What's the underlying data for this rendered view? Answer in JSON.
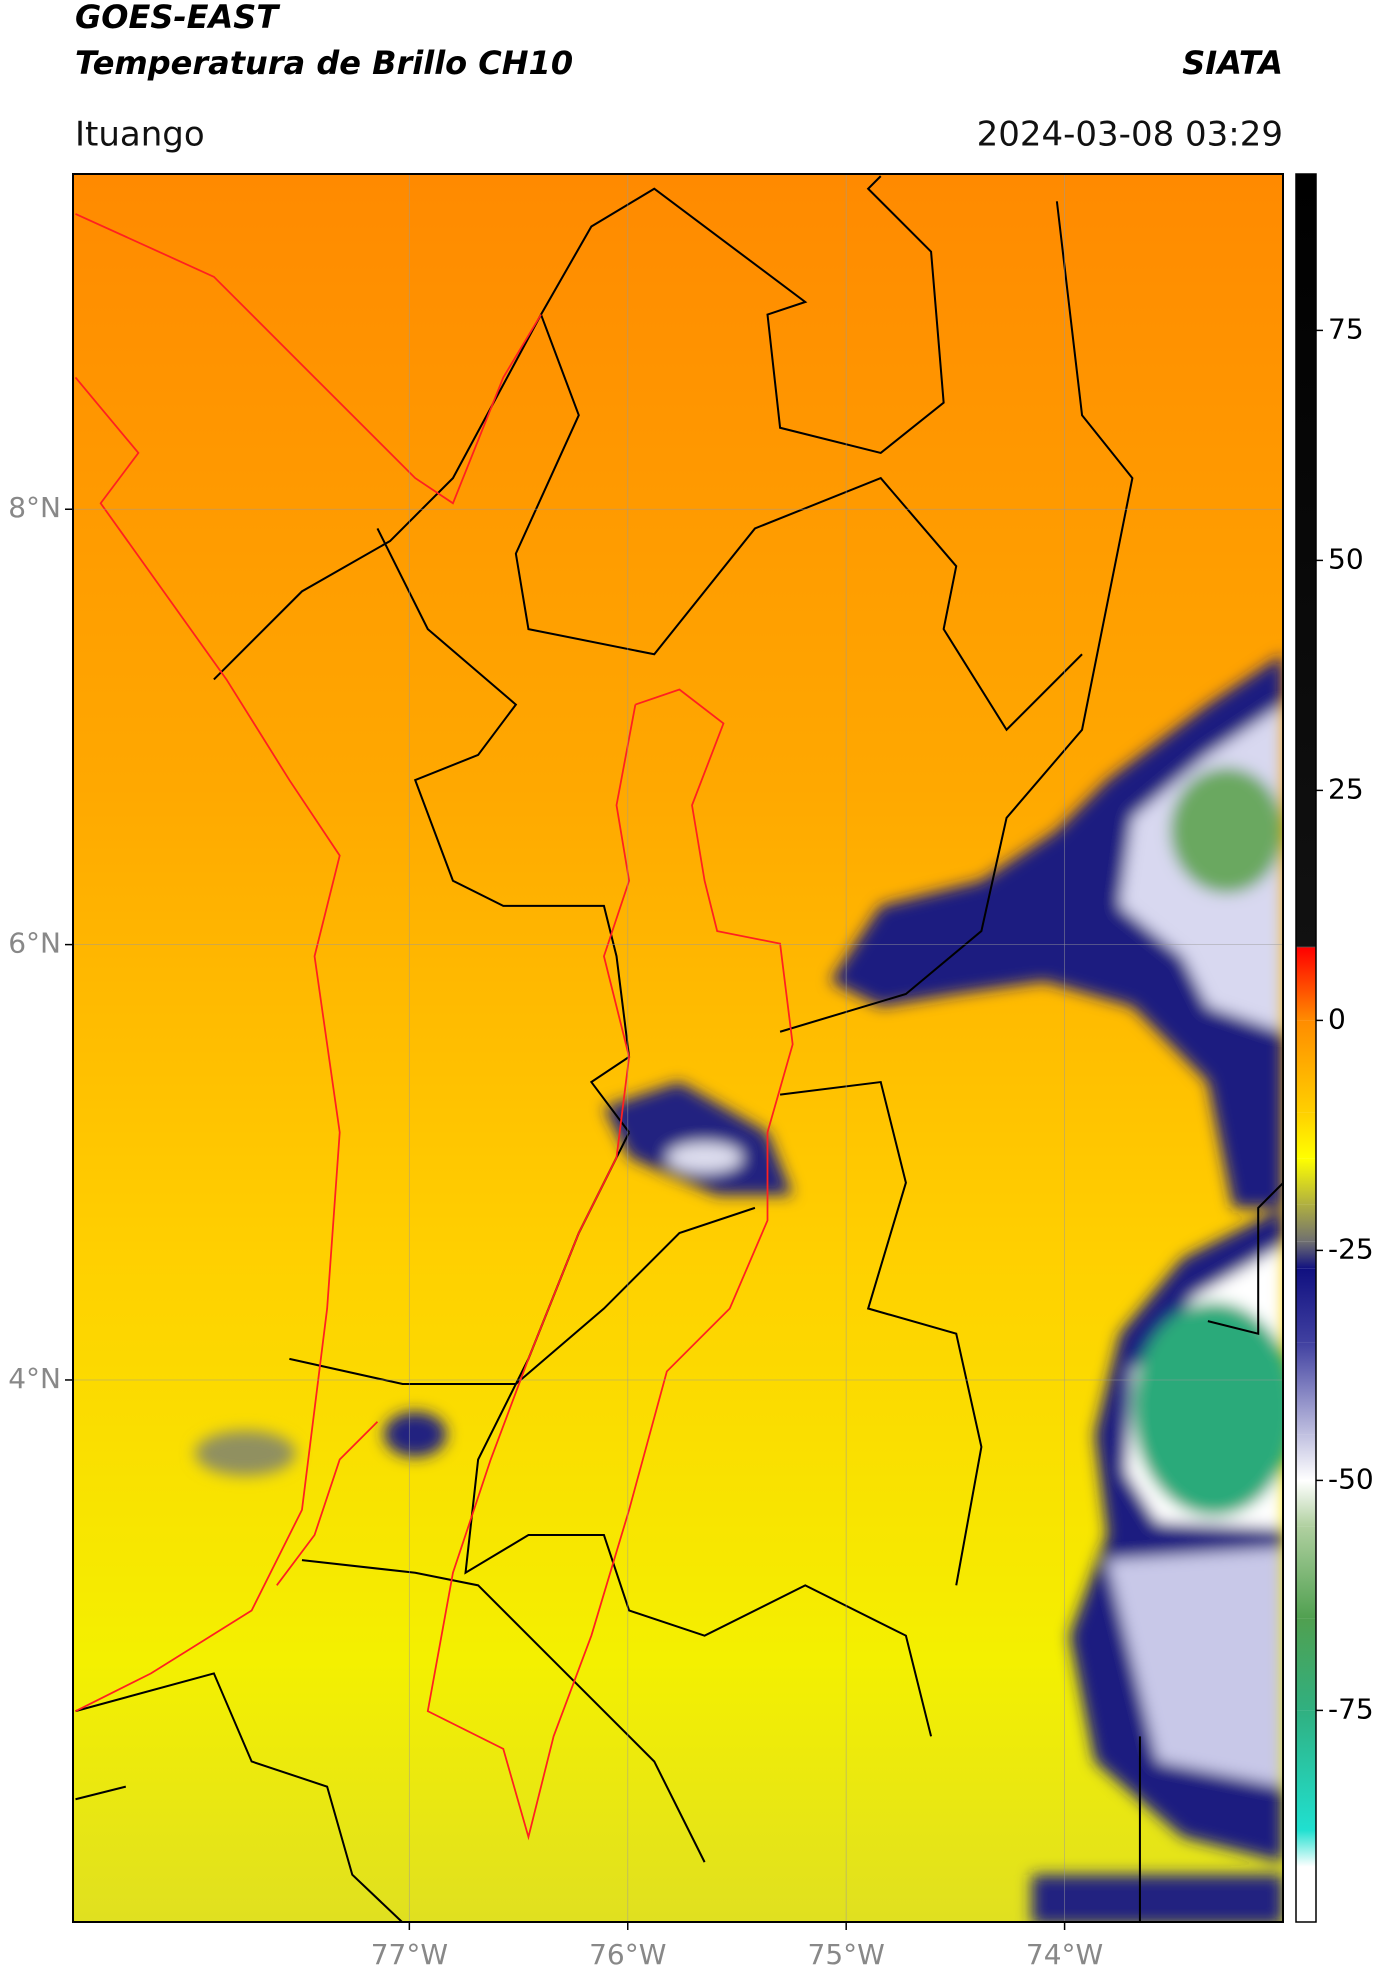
{
  "chart_data": {
    "type": "map",
    "title": "GOES-EAST",
    "subtitle": "Temperatura de Brillo CH10",
    "source": "SIATA",
    "location": "Ituango",
    "datetime": "2024-03-08 03:29",
    "xlim": [
      -78.54,
      -73.0
    ],
    "ylim": [
      1.51,
      9.54
    ],
    "xticks": [
      {
        "value": -77,
        "label": "77°W"
      },
      {
        "value": -76,
        "label": "76°W"
      },
      {
        "value": -75,
        "label": "75°W"
      },
      {
        "value": -74,
        "label": "74°W"
      }
    ],
    "yticks": [
      {
        "value": 8,
        "label": "8°N"
      },
      {
        "value": 6,
        "label": "6°N"
      },
      {
        "value": 4,
        "label": "4°N"
      }
    ],
    "grid": true,
    "colorbar": {
      "range": [
        -98,
        92
      ],
      "ticks": [
        75,
        50,
        25,
        0,
        {
          "value": -25,
          "label": "-25"
        },
        {
          "value": -50,
          "label": "-50"
        },
        {
          "value": -75,
          "label": "-75"
        }
      ],
      "stops": [
        {
          "value": 92,
          "color": "#000000"
        },
        {
          "value": 8,
          "color": "#111111"
        },
        {
          "value": 7.9,
          "color": "#ff0000"
        },
        {
          "value": 0,
          "color": "#ff8c00"
        },
        {
          "value": -10,
          "color": "#ffd000"
        },
        {
          "value": -15,
          "color": "#ffff00"
        },
        {
          "value": -20,
          "color": "#b0b040"
        },
        {
          "value": -24,
          "color": "#707070"
        },
        {
          "value": -27,
          "color": "#101080"
        },
        {
          "value": -35,
          "color": "#4040a0"
        },
        {
          "value": -45,
          "color": "#c0c0e0"
        },
        {
          "value": -50,
          "color": "#ffffff"
        },
        {
          "value": -55,
          "color": "#b0d0a0"
        },
        {
          "value": -65,
          "color": "#50a050"
        },
        {
          "value": -75,
          "color": "#30b080"
        },
        {
          "value": -88,
          "color": "#20e0d0"
        },
        {
          "value": -92,
          "color": "#ffffff"
        },
        {
          "value": -98,
          "color": "#ffffff"
        }
      ]
    }
  }
}
